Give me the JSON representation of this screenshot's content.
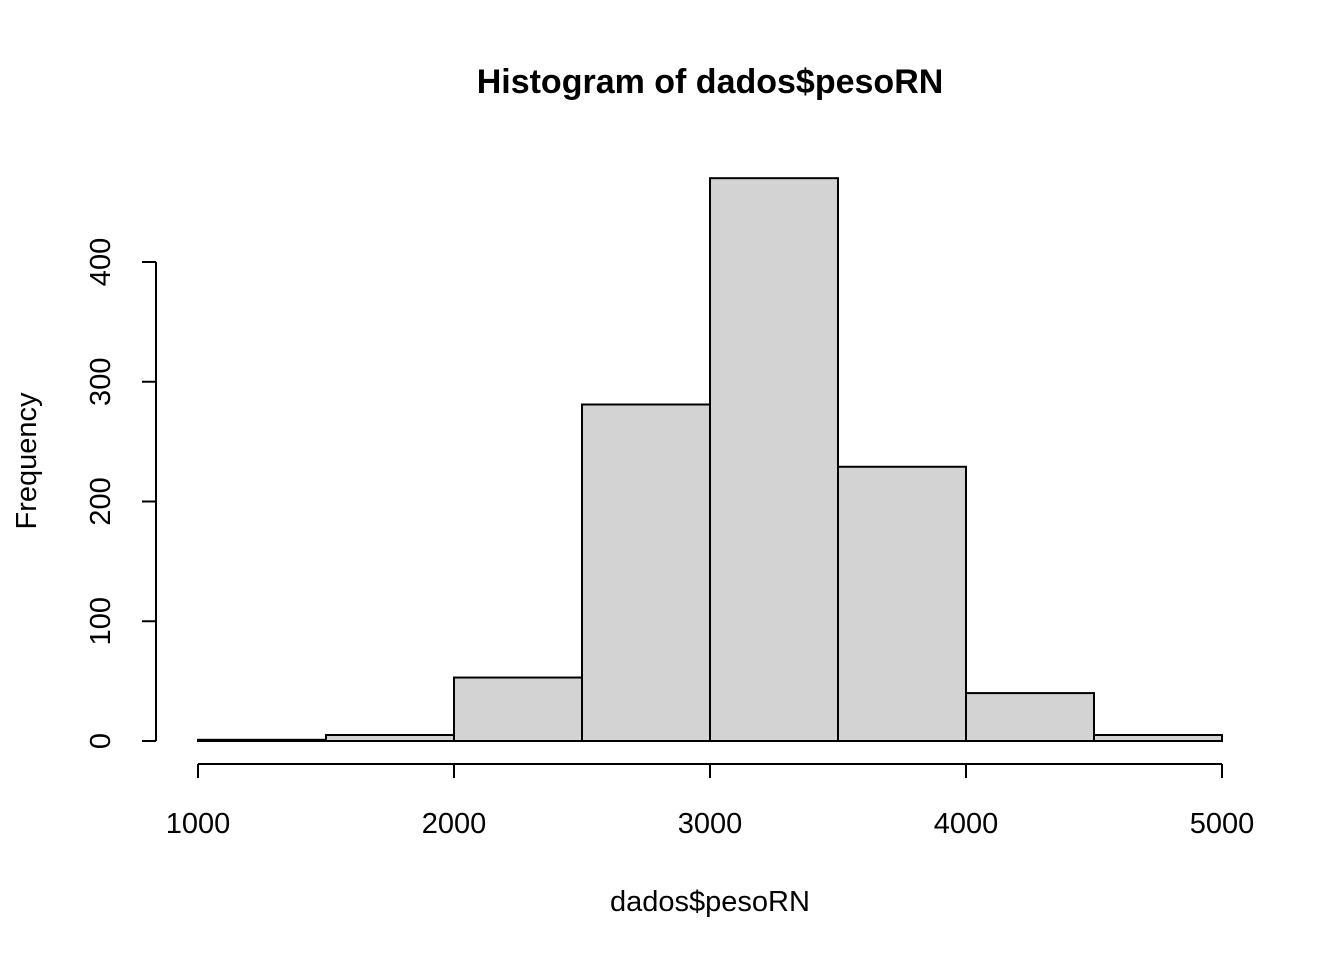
{
  "chart_data": {
    "type": "bar",
    "title": "Histogram of dados$pesoRN",
    "xlabel": "dados$pesoRN",
    "ylabel": "Frequency",
    "bins": [
      {
        "from": 1000,
        "to": 1500,
        "count": 1
      },
      {
        "from": 1500,
        "to": 2000,
        "count": 5
      },
      {
        "from": 2000,
        "to": 2500,
        "count": 53
      },
      {
        "from": 2500,
        "to": 3000,
        "count": 281
      },
      {
        "from": 3000,
        "to": 3500,
        "count": 470
      },
      {
        "from": 3500,
        "to": 4000,
        "count": 229
      },
      {
        "from": 4000,
        "to": 4500,
        "count": 40
      },
      {
        "from": 4500,
        "to": 5000,
        "count": 5
      }
    ],
    "x_ticks": [
      1000,
      2000,
      3000,
      4000,
      5000
    ],
    "y_ticks": [
      0,
      100,
      200,
      300,
      400
    ],
    "xlim": [
      1000,
      5000
    ],
    "ylim": [
      0,
      470
    ],
    "fill_color": "#d3d3d3",
    "grid": false,
    "legend": "none"
  }
}
